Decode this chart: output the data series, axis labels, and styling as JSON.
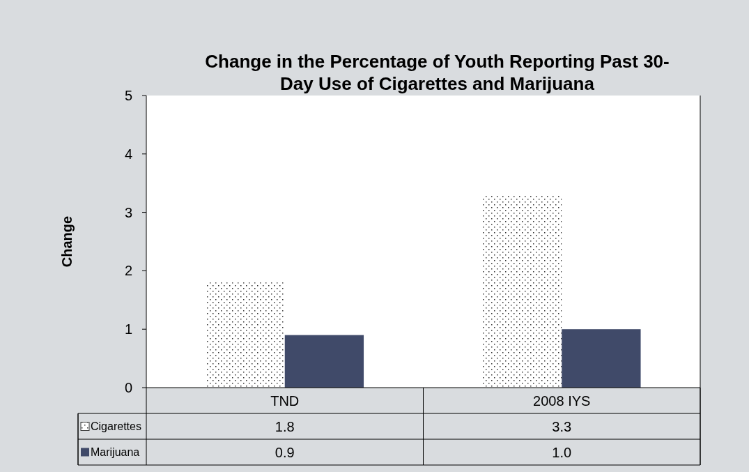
{
  "chart_data": {
    "type": "bar",
    "title": "Change in the Percentage of Youth Reporting Past 30-Day Use of Cigarettes and Marijuana",
    "ylabel": "Change",
    "categories": [
      "TND",
      "2008 IYS"
    ],
    "series": [
      {
        "name": "Cigarettes",
        "color": "#ffffff",
        "values": [
          1.8,
          3.3
        ],
        "value_labels": [
          "1.8",
          "3.3"
        ]
      },
      {
        "name": "Marijuana",
        "color": "#404a69",
        "values": [
          0.9,
          1.0
        ],
        "value_labels": [
          "0.9",
          "1.0"
        ]
      }
    ],
    "ylim": [
      0,
      5
    ],
    "yticks": [
      0,
      1,
      2,
      3,
      4,
      5
    ],
    "grid": false,
    "legend": "bottom"
  }
}
